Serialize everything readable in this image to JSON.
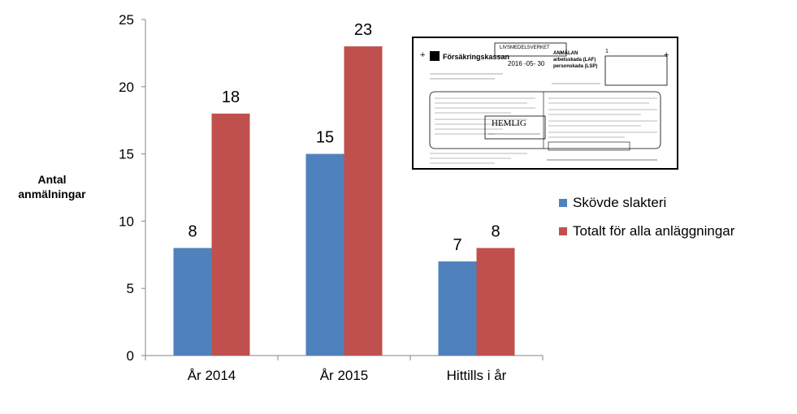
{
  "chart_data": {
    "type": "bar",
    "categories": [
      "År 2014",
      "År 2015",
      "Hittills i år"
    ],
    "series": [
      {
        "name": "Skövde slakteri",
        "color": "#4F81BD",
        "values": [
          8,
          15,
          7
        ]
      },
      {
        "name": "Totalt för alla anläggningar",
        "color": "#C0504D",
        "values": [
          18,
          23,
          8
        ]
      }
    ],
    "ylabel": "Antal anmälningar",
    "ylim": [
      0,
      25
    ],
    "yticks": [
      0,
      5,
      10,
      15,
      20,
      25
    ],
    "data_labels": true,
    "legend_position": "right",
    "grid": false
  },
  "ylabel_lines": [
    "Antal",
    "anmälningar"
  ],
  "document_image": {
    "logo_text": "Försäkringskassan",
    "stamp_agency": "LIVSMEDELSVERKET",
    "form_title": [
      "ANMÄLAN",
      "arbetsskada (LAF)",
      "personskada (LSP)"
    ],
    "stamp_date": "2016 -05- 30",
    "stamp_secret": "HEMLIG",
    "page_number": "1"
  }
}
